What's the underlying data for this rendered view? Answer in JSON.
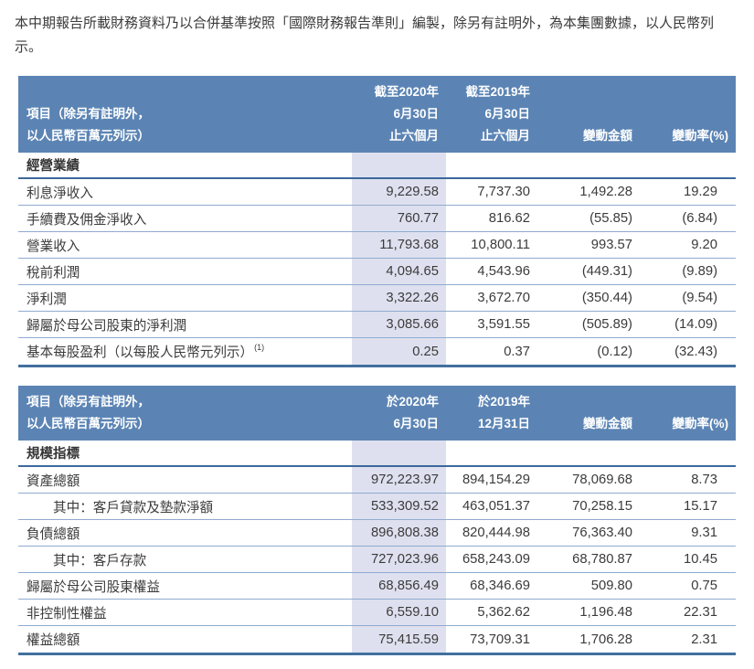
{
  "intro": "本中期報告所載財務資料乃以合併基準按照「國際財務報告準則」編製，除另有註明外，為本集團數據，以人民幣列示。",
  "colors": {
    "header_bg": "#5b84b4",
    "header_text": "#ffffff",
    "highlight_column": "#dfe0ef",
    "rule_light": "#8fabd0",
    "rule_dark": "#3c689c",
    "body_text": "#3b3b3b"
  },
  "table1": {
    "header": {
      "item_line1": "項目（除另有註明外，",
      "item_line2": "以人民幣百萬元列示）",
      "col_2020": [
        "截至2020年",
        "6月30日",
        "止六個月"
      ],
      "col_2019": [
        "截至2019年",
        "6月30日",
        "止六個月"
      ],
      "col_change": "變動金額",
      "col_rate": "變動率(%)"
    },
    "section": "經營業績",
    "rows": [
      {
        "label": "利息淨收入",
        "v2020": "9,229.58",
        "v2019": "7,737.30",
        "change": "1,492.28",
        "rate": "19.29"
      },
      {
        "label": "手續費及佣金淨收入",
        "v2020": "760.77",
        "v2019": "816.62",
        "change": "(55.85)",
        "rate": "(6.84)"
      },
      {
        "label": "營業收入",
        "v2020": "11,793.68",
        "v2019": "10,800.11",
        "change": "993.57",
        "rate": "9.20"
      },
      {
        "label": "稅前利潤",
        "v2020": "4,094.65",
        "v2019": "4,543.96",
        "change": "(449.31)",
        "rate": "(9.89)"
      },
      {
        "label": "淨利潤",
        "v2020": "3,322.26",
        "v2019": "3,672.70",
        "change": "(350.44)",
        "rate": "(9.54)"
      },
      {
        "label": "歸屬於母公司股東的淨利潤",
        "v2020": "3,085.66",
        "v2019": "3,591.55",
        "change": "(505.89)",
        "rate": "(14.09)"
      },
      {
        "label": "基本每股盈利（以每股人民幣元列示）",
        "sup": "(1)",
        "v2020": "0.25",
        "v2019": "0.37",
        "change": "(0.12)",
        "rate": "(32.43)"
      }
    ]
  },
  "table2": {
    "header": {
      "item_line1": "項目（除另有註明外，",
      "item_line2": "以人民幣百萬元列示）",
      "col_2020": [
        "於2020年",
        "6月30日"
      ],
      "col_2019": [
        "於2019年",
        "12月31日"
      ],
      "col_change": "變動金額",
      "col_rate": "變動率(%)"
    },
    "section": "規模指標",
    "rows": [
      {
        "label": "資產總額",
        "v2020": "972,223.97",
        "v2019": "894,154.29",
        "change": "78,069.68",
        "rate": "8.73"
      },
      {
        "label": "其中：客戶貸款及墊款淨額",
        "indent": true,
        "v2020": "533,309.52",
        "v2019": "463,051.37",
        "change": "70,258.15",
        "rate": "15.17"
      },
      {
        "label": "負債總額",
        "v2020": "896,808.38",
        "v2019": "820,444.98",
        "change": "76,363.40",
        "rate": "9.31"
      },
      {
        "label": "其中：客戶存款",
        "indent": true,
        "v2020": "727,023.96",
        "v2019": "658,243.09",
        "change": "68,780.87",
        "rate": "10.45"
      },
      {
        "label": "歸屬於母公司股東權益",
        "v2020": "68,856.49",
        "v2019": "68,346.69",
        "change": "509.80",
        "rate": "0.75"
      },
      {
        "label": "非控制性權益",
        "v2020": "6,559.10",
        "v2019": "5,362.62",
        "change": "1,196.48",
        "rate": "22.31"
      },
      {
        "label": "權益總額",
        "v2020": "75,415.59",
        "v2019": "73,709.31",
        "change": "1,706.28",
        "rate": "2.31"
      }
    ]
  }
}
